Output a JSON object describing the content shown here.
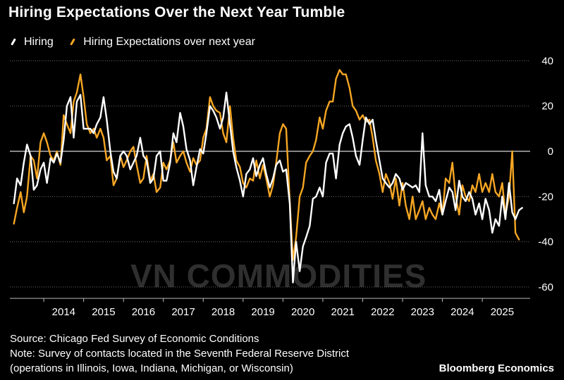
{
  "title": "Hiring Expectations Over the Next Year Tumble",
  "watermark": "VN COMMODITIES",
  "footer": {
    "source": "Source: Chicago Fed Survey of Economic Conditions",
    "note": "Note: Survey of contacts located in the Seventh Federal Reserve District",
    "note2": "(operations in Illinois, Iowa, Indiana, Michigan, or Wisconsin)",
    "brand": "Bloomberg Economics"
  },
  "colors": {
    "hiring": "#ffffff",
    "expectations": "#f5a623",
    "grid": "#6a6a6a",
    "zero": "#d8d8d8"
  },
  "chart_data": {
    "type": "line",
    "title": "Hiring Expectations Over the Next Year Tumble",
    "xlabel": "",
    "ylabel": "",
    "xlim": [
      2013.15,
      2026.2
    ],
    "ylim": [
      -65,
      42
    ],
    "yticks": [
      40,
      20,
      0,
      -20,
      -40,
      -60
    ],
    "xticks": [
      2014,
      2015,
      2016,
      2017,
      2018,
      2019,
      2020,
      2021,
      2022,
      2023,
      2024,
      2025
    ],
    "legend": "top-left",
    "series": [
      {
        "name": "Hiring",
        "points": [
          [
            2013.25,
            -23
          ],
          [
            2013.33,
            -12
          ],
          [
            2013.42,
            -15
          ],
          [
            2013.5,
            -5
          ],
          [
            2013.58,
            3
          ],
          [
            2013.67,
            -2
          ],
          [
            2013.75,
            -17
          ],
          [
            2013.83,
            -15
          ],
          [
            2013.92,
            -8
          ],
          [
            2014.0,
            -5
          ],
          [
            2014.08,
            -14
          ],
          [
            2014.17,
            -3
          ],
          [
            2014.25,
            -5
          ],
          [
            2014.33,
            -1
          ],
          [
            2014.42,
            -5
          ],
          [
            2014.5,
            5
          ],
          [
            2014.58,
            20
          ],
          [
            2014.67,
            24
          ],
          [
            2014.75,
            6
          ],
          [
            2014.83,
            22
          ],
          [
            2014.92,
            25
          ],
          [
            2015.0,
            10
          ],
          [
            2015.08,
            10
          ],
          [
            2015.17,
            10
          ],
          [
            2015.25,
            8
          ],
          [
            2015.33,
            12
          ],
          [
            2015.42,
            15
          ],
          [
            2015.5,
            24
          ],
          [
            2015.58,
            14
          ],
          [
            2015.67,
            0
          ],
          [
            2015.75,
            -9
          ],
          [
            2015.83,
            -12
          ],
          [
            2015.92,
            -2
          ],
          [
            2016.0,
            0
          ],
          [
            2016.08,
            -2
          ],
          [
            2016.17,
            -8
          ],
          [
            2016.25,
            -5
          ],
          [
            2016.33,
            -2
          ],
          [
            2016.42,
            6
          ],
          [
            2016.5,
            -2
          ],
          [
            2016.58,
            -4
          ],
          [
            2016.67,
            -14
          ],
          [
            2016.75,
            -12
          ],
          [
            2016.83,
            -2
          ],
          [
            2016.92,
            0
          ],
          [
            2017.0,
            -13
          ],
          [
            2017.08,
            -13
          ],
          [
            2017.17,
            -5
          ],
          [
            2017.25,
            8
          ],
          [
            2017.33,
            4
          ],
          [
            2017.42,
            17
          ],
          [
            2017.5,
            11
          ],
          [
            2017.58,
            1
          ],
          [
            2017.67,
            -4
          ],
          [
            2017.75,
            -15
          ],
          [
            2017.83,
            -7
          ],
          [
            2017.92,
            1
          ],
          [
            2018.0,
            -1
          ],
          [
            2018.08,
            8
          ],
          [
            2018.17,
            20
          ],
          [
            2018.25,
            18
          ],
          [
            2018.33,
            15
          ],
          [
            2018.42,
            10
          ],
          [
            2018.5,
            15
          ],
          [
            2018.58,
            26
          ],
          [
            2018.67,
            12
          ],
          [
            2018.75,
            0
          ],
          [
            2018.83,
            -7
          ],
          [
            2018.92,
            -13
          ],
          [
            2019.0,
            -20
          ],
          [
            2019.08,
            -10
          ],
          [
            2019.17,
            -8
          ],
          [
            2019.25,
            -3
          ],
          [
            2019.33,
            -11
          ],
          [
            2019.42,
            -6
          ],
          [
            2019.5,
            -3
          ],
          [
            2019.58,
            -10
          ],
          [
            2019.67,
            -16
          ],
          [
            2019.75,
            -12
          ],
          [
            2019.83,
            -6
          ],
          [
            2019.92,
            -4
          ],
          [
            2020.0,
            -9
          ],
          [
            2020.08,
            -8
          ],
          [
            2020.17,
            -23
          ],
          [
            2020.25,
            -58
          ],
          [
            2020.33,
            -40
          ],
          [
            2020.42,
            -53
          ],
          [
            2020.5,
            -42
          ],
          [
            2020.58,
            -38
          ],
          [
            2020.67,
            -33
          ],
          [
            2020.75,
            -21
          ],
          [
            2020.83,
            -20
          ],
          [
            2020.92,
            -16
          ],
          [
            2021.0,
            -20
          ],
          [
            2021.08,
            -5
          ],
          [
            2021.17,
            -1
          ],
          [
            2021.25,
            -1
          ],
          [
            2021.33,
            -12
          ],
          [
            2021.42,
            3
          ],
          [
            2021.5,
            8
          ],
          [
            2021.58,
            11
          ],
          [
            2021.67,
            12
          ],
          [
            2021.75,
            6
          ],
          [
            2021.83,
            -2
          ],
          [
            2021.92,
            -6
          ],
          [
            2022.0,
            5
          ],
          [
            2022.08,
            15
          ],
          [
            2022.17,
            12
          ],
          [
            2022.25,
            14
          ],
          [
            2022.33,
            5
          ],
          [
            2022.42,
            -4
          ],
          [
            2022.5,
            -12
          ],
          [
            2022.58,
            -14
          ],
          [
            2022.67,
            -16
          ],
          [
            2022.75,
            -14
          ],
          [
            2022.83,
            -10
          ],
          [
            2022.92,
            -12
          ],
          [
            2023.0,
            -17
          ],
          [
            2023.08,
            -14
          ],
          [
            2023.17,
            -15
          ],
          [
            2023.25,
            -16
          ],
          [
            2023.33,
            -15
          ],
          [
            2023.42,
            -18
          ],
          [
            2023.5,
            8
          ],
          [
            2023.58,
            -15
          ],
          [
            2023.67,
            -20
          ],
          [
            2023.75,
            -20
          ],
          [
            2023.83,
            -22
          ],
          [
            2023.92,
            -17
          ],
          [
            2024.0,
            -28
          ],
          [
            2024.08,
            -22
          ],
          [
            2024.17,
            -16
          ],
          [
            2024.25,
            -18
          ],
          [
            2024.33,
            -26
          ],
          [
            2024.42,
            -13
          ],
          [
            2024.5,
            -20
          ],
          [
            2024.58,
            -22
          ],
          [
            2024.67,
            -18
          ],
          [
            2024.75,
            -21
          ],
          [
            2024.83,
            -28
          ],
          [
            2024.92,
            -23
          ],
          [
            2025.0,
            -30
          ],
          [
            2025.08,
            -21
          ],
          [
            2025.17,
            -26
          ],
          [
            2025.25,
            -36
          ],
          [
            2025.33,
            -30
          ],
          [
            2025.42,
            -33
          ],
          [
            2025.5,
            -20
          ],
          [
            2025.58,
            -30
          ],
          [
            2025.67,
            -14
          ],
          [
            2025.75,
            -27
          ],
          [
            2025.83,
            -30
          ],
          [
            2025.92,
            -26
          ],
          [
            2026.0,
            -25
          ]
        ]
      },
      {
        "name": "Hiring Expectations over next year",
        "points": [
          [
            2013.25,
            -32
          ],
          [
            2013.33,
            -25
          ],
          [
            2013.42,
            -18
          ],
          [
            2013.5,
            -27
          ],
          [
            2013.58,
            -20
          ],
          [
            2013.67,
            -2
          ],
          [
            2013.75,
            -4
          ],
          [
            2013.83,
            -12
          ],
          [
            2013.92,
            4
          ],
          [
            2014.0,
            8
          ],
          [
            2014.08,
            4
          ],
          [
            2014.17,
            -2
          ],
          [
            2014.25,
            -4
          ],
          [
            2014.33,
            0
          ],
          [
            2014.42,
            -6
          ],
          [
            2014.5,
            16
          ],
          [
            2014.58,
            12
          ],
          [
            2014.67,
            8
          ],
          [
            2014.75,
            22
          ],
          [
            2014.83,
            26
          ],
          [
            2014.92,
            34
          ],
          [
            2015.0,
            24
          ],
          [
            2015.08,
            12
          ],
          [
            2015.17,
            8
          ],
          [
            2015.25,
            10
          ],
          [
            2015.33,
            6
          ],
          [
            2015.42,
            10
          ],
          [
            2015.5,
            6
          ],
          [
            2015.58,
            -4
          ],
          [
            2015.67,
            -2
          ],
          [
            2015.75,
            -15
          ],
          [
            2015.83,
            -12
          ],
          [
            2015.92,
            -2
          ],
          [
            2016.0,
            -7
          ],
          [
            2016.08,
            -4
          ],
          [
            2016.17,
            0
          ],
          [
            2016.25,
            2
          ],
          [
            2016.33,
            -6
          ],
          [
            2016.42,
            -14
          ],
          [
            2016.5,
            -12
          ],
          [
            2016.58,
            -2
          ],
          [
            2016.67,
            -13
          ],
          [
            2016.75,
            -10
          ],
          [
            2016.83,
            -18
          ],
          [
            2016.92,
            -16
          ],
          [
            2017.0,
            -5
          ],
          [
            2017.08,
            -8
          ],
          [
            2017.17,
            -4
          ],
          [
            2017.25,
            4
          ],
          [
            2017.33,
            -5
          ],
          [
            2017.42,
            -2
          ],
          [
            2017.5,
            0
          ],
          [
            2017.58,
            -5
          ],
          [
            2017.67,
            -9
          ],
          [
            2017.75,
            -3
          ],
          [
            2017.83,
            -6
          ],
          [
            2017.92,
            -4
          ],
          [
            2018.0,
            6
          ],
          [
            2018.08,
            10
          ],
          [
            2018.17,
            24
          ],
          [
            2018.25,
            20
          ],
          [
            2018.33,
            18
          ],
          [
            2018.42,
            17
          ],
          [
            2018.5,
            8
          ],
          [
            2018.58,
            4
          ],
          [
            2018.67,
            20
          ],
          [
            2018.75,
            6
          ],
          [
            2018.83,
            -4
          ],
          [
            2018.92,
            -7
          ],
          [
            2019.0,
            -14
          ],
          [
            2019.08,
            -16
          ],
          [
            2019.17,
            -12
          ],
          [
            2019.25,
            -13
          ],
          [
            2019.33,
            -4
          ],
          [
            2019.42,
            -12
          ],
          [
            2019.5,
            -6
          ],
          [
            2019.58,
            -12
          ],
          [
            2019.67,
            -20
          ],
          [
            2019.75,
            -15
          ],
          [
            2019.83,
            -5
          ],
          [
            2019.92,
            8
          ],
          [
            2020.0,
            12
          ],
          [
            2020.08,
            10
          ],
          [
            2020.17,
            -22
          ],
          [
            2020.25,
            -48
          ],
          [
            2020.33,
            -38
          ],
          [
            2020.42,
            -20
          ],
          [
            2020.5,
            -16
          ],
          [
            2020.58,
            -5
          ],
          [
            2020.67,
            -2
          ],
          [
            2020.75,
            0
          ],
          [
            2020.83,
            5
          ],
          [
            2020.92,
            15
          ],
          [
            2021.0,
            10
          ],
          [
            2021.08,
            18
          ],
          [
            2021.17,
            22
          ],
          [
            2021.25,
            22
          ],
          [
            2021.33,
            32
          ],
          [
            2021.42,
            36
          ],
          [
            2021.5,
            34
          ],
          [
            2021.58,
            34
          ],
          [
            2021.67,
            28
          ],
          [
            2021.75,
            20
          ],
          [
            2021.83,
            18
          ],
          [
            2021.92,
            14
          ],
          [
            2022.0,
            16
          ],
          [
            2022.08,
            13
          ],
          [
            2022.17,
            14
          ],
          [
            2022.25,
            6
          ],
          [
            2022.33,
            -4
          ],
          [
            2022.42,
            -10
          ],
          [
            2022.5,
            -18
          ],
          [
            2022.58,
            -10
          ],
          [
            2022.67,
            -14
          ],
          [
            2022.75,
            -21
          ],
          [
            2022.83,
            -12
          ],
          [
            2022.92,
            -24
          ],
          [
            2023.0,
            -14
          ],
          [
            2023.08,
            -24
          ],
          [
            2023.17,
            -30
          ],
          [
            2023.25,
            -20
          ],
          [
            2023.33,
            -30
          ],
          [
            2023.42,
            -26
          ],
          [
            2023.5,
            -22
          ],
          [
            2023.58,
            -30
          ],
          [
            2023.67,
            -25
          ],
          [
            2023.75,
            -28
          ],
          [
            2023.83,
            -30
          ],
          [
            2023.92,
            -23
          ],
          [
            2024.0,
            -28
          ],
          [
            2024.08,
            -12
          ],
          [
            2024.17,
            -14
          ],
          [
            2024.25,
            -5
          ],
          [
            2024.33,
            -20
          ],
          [
            2024.42,
            -28
          ],
          [
            2024.5,
            -15
          ],
          [
            2024.58,
            -20
          ],
          [
            2024.67,
            -22
          ],
          [
            2024.75,
            -15
          ],
          [
            2024.83,
            -18
          ],
          [
            2024.92,
            -10
          ],
          [
            2025.0,
            -18
          ],
          [
            2025.08,
            -14
          ],
          [
            2025.17,
            -18
          ],
          [
            2025.25,
            -10
          ],
          [
            2025.33,
            -18
          ],
          [
            2025.42,
            -20
          ],
          [
            2025.5,
            -14
          ],
          [
            2025.58,
            -28
          ],
          [
            2025.67,
            -20
          ],
          [
            2025.75,
            0
          ],
          [
            2025.83,
            -36
          ],
          [
            2025.92,
            -39
          ]
        ]
      }
    ]
  }
}
